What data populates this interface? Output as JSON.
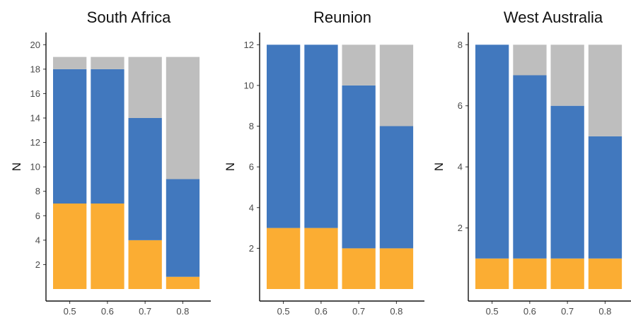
{
  "chart_data": [
    {
      "type": "bar",
      "stacked": true,
      "title": "South Africa",
      "ylabel": "N",
      "categories": [
        "0.5",
        "0.6",
        "0.7",
        "0.8"
      ],
      "ylim": [
        0,
        21
      ],
      "yticks": [
        2,
        4,
        6,
        8,
        10,
        12,
        14,
        16,
        18,
        20
      ],
      "series": [
        {
          "values": [
            7,
            7,
            4,
            1
          ],
          "color": "#FBAD33"
        },
        {
          "values": [
            11,
            11,
            10,
            8
          ],
          "color": "#4178BE"
        },
        {
          "values": [
            1,
            1,
            5,
            10
          ],
          "color": "#BEBEBE"
        }
      ]
    },
    {
      "type": "bar",
      "stacked": true,
      "title": "Reunion",
      "ylabel": "N",
      "categories": [
        "0.5",
        "0.6",
        "0.7",
        "0.8"
      ],
      "ylim": [
        0,
        12.6
      ],
      "yticks": [
        2,
        4,
        6,
        8,
        10,
        12
      ],
      "series": [
        {
          "values": [
            3,
            3,
            2,
            2
          ],
          "color": "#FBAD33"
        },
        {
          "values": [
            9,
            9,
            8,
            6
          ],
          "color": "#4178BE"
        },
        {
          "values": [
            0,
            0,
            2,
            4
          ],
          "color": "#BEBEBE"
        }
      ]
    },
    {
      "type": "bar",
      "stacked": true,
      "title": "West Australia",
      "ylabel": "N",
      "categories": [
        "0.5",
        "0.6",
        "0.7",
        "0.8"
      ],
      "ylim": [
        0,
        8.4
      ],
      "yticks": [
        2,
        4,
        6,
        8
      ],
      "series": [
        {
          "values": [
            1,
            1,
            1,
            1
          ],
          "color": "#FBAD33"
        },
        {
          "values": [
            7,
            6,
            5,
            4
          ],
          "color": "#4178BE"
        },
        {
          "values": [
            0,
            1,
            2,
            3
          ],
          "color": "#BEBEBE"
        }
      ]
    }
  ]
}
